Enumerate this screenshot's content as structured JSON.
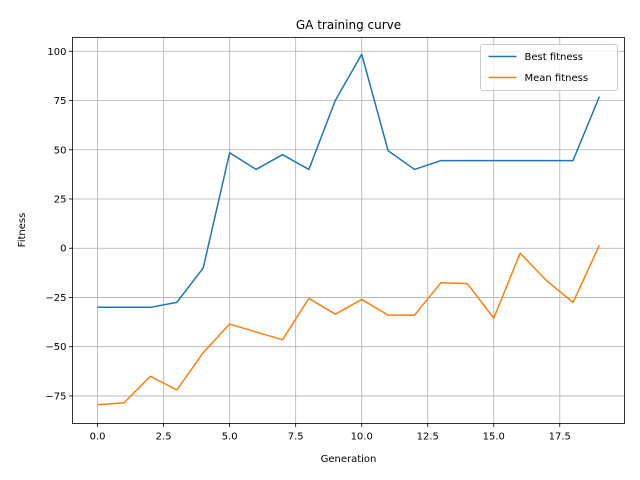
{
  "chart_data": {
    "type": "line",
    "title": "GA training curve",
    "xlabel": "Generation",
    "ylabel": "Fitness",
    "xlim": [
      -0.95,
      19.95
    ],
    "ylim": [
      -89,
      107
    ],
    "xticks": [
      0.0,
      2.5,
      5.0,
      7.5,
      10.0,
      12.5,
      15.0,
      17.5
    ],
    "xtick_labels": [
      "0.0",
      "2.5",
      "5.0",
      "7.5",
      "10.0",
      "12.5",
      "15.0",
      "17.5"
    ],
    "yticks": [
      -75,
      -50,
      -25,
      0,
      25,
      50,
      75,
      100
    ],
    "ytick_labels": [
      "−75",
      "−50",
      "−25",
      "0",
      "25",
      "50",
      "75",
      "100"
    ],
    "grid": true,
    "legend_position": "top-right",
    "x": [
      0,
      1,
      2,
      3,
      4,
      5,
      6,
      7,
      8,
      9,
      10,
      11,
      12,
      13,
      14,
      15,
      16,
      17,
      18,
      19
    ],
    "series": [
      {
        "name": "Best fitness",
        "color": "#1f77b4",
        "values": [
          -30,
          -30,
          -30,
          -27.5,
          -10,
          48.5,
          40,
          47.5,
          40,
          75,
          98.5,
          49.5,
          40,
          44.5,
          44.5,
          44.5,
          44.5,
          44.5,
          44.5,
          77
        ]
      },
      {
        "name": "Mean fitness",
        "color": "#ff7f0e",
        "values": [
          -79.5,
          -78.5,
          -65,
          -72,
          -53,
          -38.5,
          -42.5,
          -46.5,
          -25.5,
          -33.5,
          -26,
          -34,
          -34,
          -17.5,
          -18,
          -35.5,
          -2.5,
          -16.5,
          -27.5,
          1.5
        ]
      }
    ]
  }
}
